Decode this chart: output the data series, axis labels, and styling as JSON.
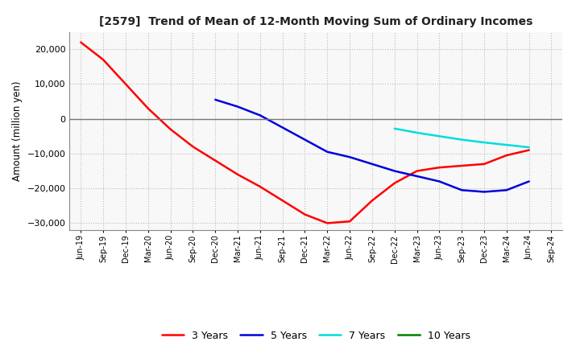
{
  "title": "[2579]  Trend of Mean of 12-Month Moving Sum of Ordinary Incomes",
  "ylabel": "Amount (million yen)",
  "background_color": "#ffffff",
  "plot_bg_color": "#f8f8f8",
  "grid_color": "#bbbbbb",
  "x_labels": [
    "Jun-19",
    "Sep-19",
    "Dec-19",
    "Mar-20",
    "Jun-20",
    "Sep-20",
    "Dec-20",
    "Mar-21",
    "Jun-21",
    "Sep-21",
    "Dec-21",
    "Mar-22",
    "Jun-22",
    "Sep-22",
    "Dec-22",
    "Mar-23",
    "Jun-23",
    "Sep-23",
    "Dec-23",
    "Mar-24",
    "Jun-24",
    "Sep-24"
  ],
  "series": {
    "3 Years": {
      "color": "#ff0000",
      "x_indices": [
        0,
        1,
        2,
        3,
        4,
        5,
        6,
        7,
        8,
        9,
        10,
        11,
        12,
        13,
        14,
        15,
        16,
        17,
        18,
        19,
        20
      ],
      "values": [
        22000,
        17000,
        10000,
        3000,
        -3000,
        -8000,
        -12000,
        -16000,
        -19500,
        -23500,
        -27500,
        -30000,
        -29500,
        -23500,
        -18500,
        -15000,
        -14000,
        -13500,
        -13000,
        -10500,
        -9000
      ]
    },
    "5 Years": {
      "color": "#0000dd",
      "x_indices": [
        6,
        7,
        8,
        9,
        10,
        11,
        12,
        13,
        14,
        15,
        16,
        17,
        18,
        19,
        20
      ],
      "values": [
        5500,
        3500,
        1000,
        -2500,
        -6000,
        -9500,
        -11000,
        -13000,
        -15000,
        -16500,
        -18000,
        -20500,
        -21000,
        -20500,
        -18000
      ]
    },
    "7 Years": {
      "color": "#00dddd",
      "x_indices": [
        14,
        15,
        16,
        17,
        18,
        19,
        20
      ],
      "values": [
        -2800,
        -4000,
        -5000,
        -6000,
        -6800,
        -7500,
        -8200
      ]
    },
    "10 Years": {
      "color": "#008000",
      "x_indices": [],
      "values": []
    }
  },
  "ylim": [
    -32000,
    25000
  ],
  "yticks": [
    -30000,
    -20000,
    -10000,
    0,
    10000,
    20000
  ],
  "legend_items": [
    "3 Years",
    "5 Years",
    "7 Years",
    "10 Years"
  ],
  "legend_colors": [
    "#ff0000",
    "#0000dd",
    "#00dddd",
    "#008000"
  ]
}
